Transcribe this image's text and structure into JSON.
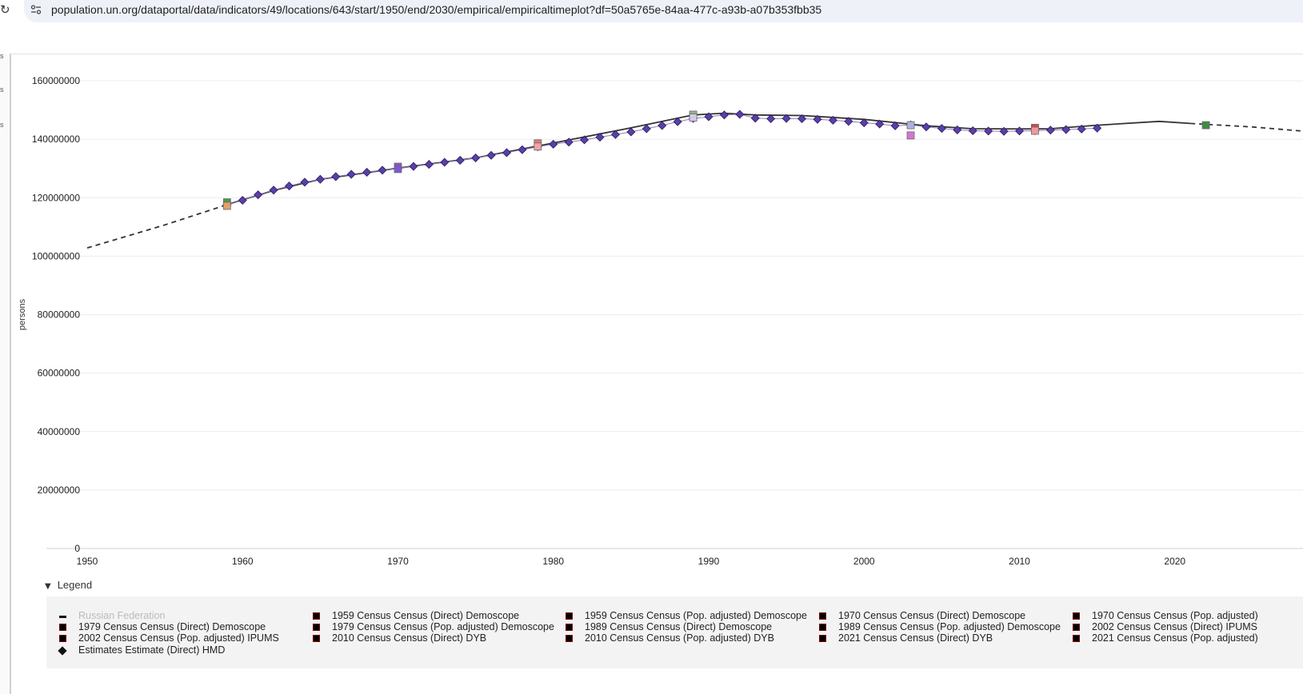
{
  "browser": {
    "url": "population.un.org/dataportal/data/indicators/49/locations/643/start/1950/end/2030/empirical/empiricaltimeplot?df=50a5765e-84aa-477c-a93b-a07b353fbb35",
    "reload_icon": "reload-icon",
    "site_info_icon": "site-info-icon"
  },
  "left_rail": {
    "chars": [
      "s",
      "s",
      "s"
    ]
  },
  "legend": {
    "toggle_label": "Legend",
    "items": [
      {
        "label": "Russian Federation",
        "symbol": "dash",
        "muted": true
      },
      {
        "label": "1959 Census Census (Direct) Demoscope",
        "symbol": "square"
      },
      {
        "label": "1959 Census Census (Pop. adjusted) Demoscope",
        "symbol": "square"
      },
      {
        "label": "1970 Census Census (Direct) Demoscope",
        "symbol": "square"
      },
      {
        "label": "1970 Census Census (Pop. adjusted)",
        "symbol": "square"
      },
      {
        "label": "1979 Census Census (Direct) Demoscope",
        "symbol": "square"
      },
      {
        "label": "1979 Census Census (Pop. adjusted) Demoscope",
        "symbol": "square"
      },
      {
        "label": "1989 Census Census (Direct) Demoscope",
        "symbol": "square"
      },
      {
        "label": "1989 Census Census (Pop. adjusted) Demoscope",
        "symbol": "square"
      },
      {
        "label": "2002 Census Census (Direct) IPUMS",
        "symbol": "square"
      },
      {
        "label": "2002 Census Census (Pop. adjusted) IPUMS",
        "symbol": "square"
      },
      {
        "label": "2010 Census Census (Direct) DYB",
        "symbol": "square"
      },
      {
        "label": "2010 Census Census (Pop. adjusted) DYB",
        "symbol": "square"
      },
      {
        "label": "2021 Census Census (Direct) DYB",
        "symbol": "square"
      },
      {
        "label": "2021 Census Census (Pop. adjusted)",
        "symbol": "square"
      },
      {
        "label": "Estimates Estimate (Direct) HMD",
        "symbol": "diamond"
      }
    ]
  },
  "chart_data": {
    "type": "line",
    "title": "",
    "xlabel": "",
    "ylabel": "persons",
    "xlim": [
      1950,
      2030
    ],
    "ylim": [
      0,
      160000000
    ],
    "x_ticks": [
      1950,
      1960,
      1970,
      1980,
      1990,
      2000,
      2010,
      2020
    ],
    "y_ticks": [
      0,
      20000000,
      40000000,
      60000000,
      80000000,
      100000000,
      120000000,
      140000000,
      160000000
    ],
    "y_tick_labels": [
      "0",
      "20000000",
      "40000000",
      "60000000",
      "80000000",
      "100000000",
      "120000000",
      "140000000",
      "160000000"
    ],
    "grid": true,
    "series": [
      {
        "name": "Russian Federation",
        "kind": "line",
        "color": "#333333",
        "x": [
          1950,
          1955,
          1959,
          1962,
          1965,
          1970,
          1975,
          1980,
          1985,
          1989,
          1991,
          1993,
          1996,
          2000,
          2004,
          2007,
          2010,
          2012,
          2015,
          2019,
          2021,
          2022,
          2025,
          2030
        ],
        "y": [
          102800000,
          110700000,
          117600000,
          122500000,
          126300000,
          130100000,
          133600000,
          138700000,
          143900000,
          148300000,
          148900000,
          148300000,
          148100000,
          146800000,
          144600000,
          143600000,
          143500000,
          143600000,
          144800000,
          146100000,
          145400000,
          145100000,
          144200000,
          142000000
        ],
        "dashed_ranges": [
          [
            1950,
            1959
          ],
          [
            2021,
            2030
          ]
        ]
      },
      {
        "name": "Estimates Estimate (Direct) HMD",
        "kind": "diamond",
        "color": "#5a3fa8",
        "x": [
          1959,
          1960,
          1961,
          1962,
          1963,
          1964,
          1965,
          1966,
          1967,
          1968,
          1969,
          1970,
          1971,
          1972,
          1973,
          1974,
          1975,
          1976,
          1977,
          1978,
          1979,
          1980,
          1981,
          1982,
          1983,
          1984,
          1985,
          1986,
          1987,
          1988,
          1989,
          1990,
          1991,
          1992,
          1993,
          1994,
          1995,
          1996,
          1997,
          1998,
          1999,
          2000,
          2001,
          2002,
          2003,
          2004,
          2005,
          2006,
          2007,
          2008,
          2009,
          2010,
          2011,
          2012,
          2013,
          2014,
          2015
        ],
        "y": [
          117500000,
          119100000,
          121000000,
          122600000,
          124000000,
          125300000,
          126300000,
          127200000,
          128000000,
          128700000,
          129400000,
          130000000,
          130700000,
          131400000,
          132100000,
          132800000,
          133600000,
          134500000,
          135400000,
          136400000,
          137400000,
          138300000,
          139000000,
          139800000,
          140700000,
          141600000,
          142500000,
          143600000,
          144700000,
          146000000,
          147100000,
          147700000,
          148300000,
          148500000,
          147200000,
          147000000,
          147100000,
          147000000,
          146800000,
          146500000,
          146100000,
          145600000,
          145200000,
          144600000,
          144900000,
          144200000,
          143700000,
          143200000,
          142900000,
          142800000,
          142700000,
          142800000,
          142900000,
          143100000,
          143300000,
          143500000,
          143800000
        ]
      },
      {
        "name": "1959 Census Census (Direct) Demoscope",
        "kind": "square",
        "color": "#4a9a4a",
        "x": [
          1959
        ],
        "y": [
          118400000
        ]
      },
      {
        "name": "1959 Census Census (Pop. adjusted) Demoscope",
        "kind": "square",
        "color": "#e6a064",
        "x": [
          1959
        ],
        "y": [
          117200000
        ]
      },
      {
        "name": "1970 Census Census (Direct) Demoscope",
        "kind": "square",
        "color": "#a44ac8",
        "x": [
          1970
        ],
        "y": [
          130600000
        ]
      },
      {
        "name": "1970 Census Census (Pop. adjusted)",
        "kind": "square",
        "color": "#7a5ad2",
        "x": [
          1970
        ],
        "y": [
          129800000
        ]
      },
      {
        "name": "1979 Census Census (Direct) Demoscope",
        "kind": "square",
        "color": "#e07a7a",
        "x": [
          1979
        ],
        "y": [
          138600000
        ]
      },
      {
        "name": "1979 Census Census (Pop. adjusted) Demoscope",
        "kind": "square",
        "color": "#f0a4a4",
        "x": [
          1979
        ],
        "y": [
          137500000
        ]
      },
      {
        "name": "1989 Census Census (Direct) Demoscope",
        "kind": "square",
        "color": "#8cb87c",
        "x": [
          1989
        ],
        "y": [
          148400000
        ]
      },
      {
        "name": "1989 Census Census (Pop. adjusted) Demoscope",
        "kind": "square",
        "color": "#d6c8ea",
        "x": [
          1989
        ],
        "y": [
          147400000
        ]
      },
      {
        "name": "2002 Census Census (Direct) IPUMS",
        "kind": "square",
        "color": "#d674d6",
        "x": [
          2003
        ],
        "y": [
          141300000
        ]
      },
      {
        "name": "2002 Census Census (Pop. adjusted) IPUMS",
        "kind": "square",
        "color": "#b0b0e0",
        "x": [
          2003
        ],
        "y": [
          144800000
        ]
      },
      {
        "name": "2010 Census Census (Direct) DYB",
        "kind": "square",
        "color": "#d84848",
        "x": [
          2011
        ],
        "y": [
          143900000
        ]
      },
      {
        "name": "2010 Census Census (Pop. adjusted) DYB",
        "kind": "square",
        "color": "#f098a0",
        "x": [
          2011
        ],
        "y": [
          142900000
        ]
      },
      {
        "name": "2021 Census Census (Direct) DYB",
        "kind": "square",
        "color": "#3c8c46",
        "x": [
          2022
        ],
        "y": [
          144800000
        ]
      }
    ]
  }
}
